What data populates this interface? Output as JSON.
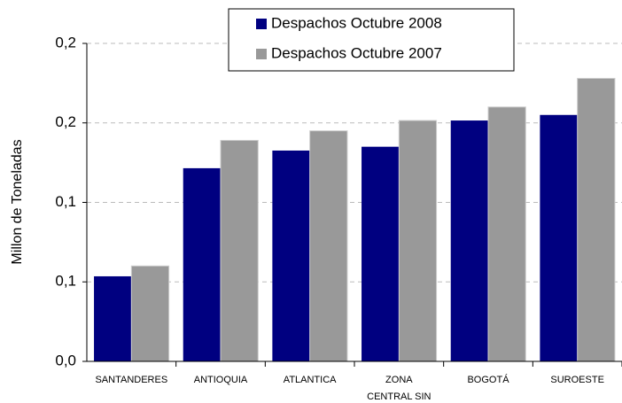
{
  "chart_data": {
    "type": "bar",
    "y_label": "Millon de Toneladas",
    "categories": [
      "SANTANDERES",
      "ANTIOQUIA",
      "ATLANTICA",
      "ZONA CENTRAL SIN BOGOTA",
      "BOGOTÁ",
      "SUROESTE"
    ],
    "series": [
      {
        "name": "Despachos Octubre 2008",
        "color": "#000080",
        "values": [
          0.0535,
          0.1215,
          0.1326,
          0.135,
          0.1515,
          0.155
        ]
      },
      {
        "name": "Despachos Octubre 2007",
        "color": "#999999",
        "values": [
          0.06,
          0.139,
          0.145,
          0.1515,
          0.16,
          0.178
        ]
      }
    ],
    "ylim": [
      0,
      0.2
    ],
    "yticks": [
      {
        "value": 0,
        "label": "0,0"
      },
      {
        "value": 0.05,
        "label": "0,1"
      },
      {
        "value": 0.1,
        "label": "0,1"
      },
      {
        "value": 0.15,
        "label": "0,2"
      },
      {
        "value": 0.2,
        "label": "0,2"
      }
    ],
    "grid": true,
    "legend": "top"
  }
}
